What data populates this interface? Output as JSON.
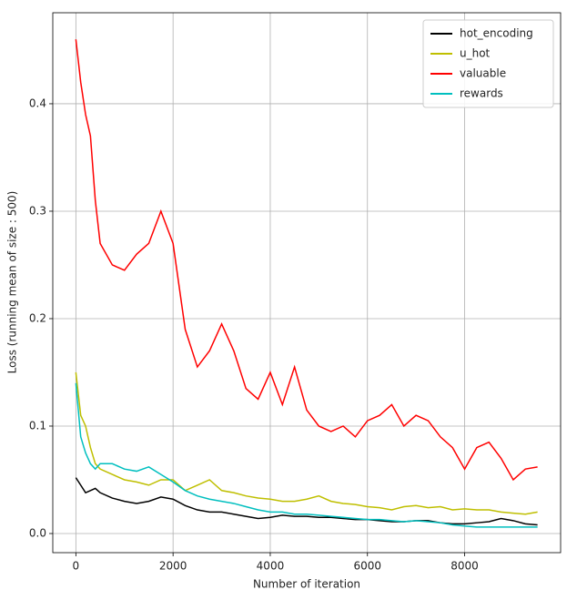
{
  "chart_data": {
    "type": "line",
    "xlabel": "Number of iteration",
    "ylabel": "Loss (running mean of size : 500)",
    "x": [
      0,
      100,
      200,
      300,
      400,
      500,
      750,
      1000,
      1250,
      1500,
      1750,
      2000,
      2250,
      2500,
      2750,
      3000,
      3250,
      3500,
      3750,
      4000,
      4250,
      4500,
      4750,
      5000,
      5250,
      5500,
      5750,
      6000,
      6250,
      6500,
      6750,
      7000,
      7250,
      7500,
      7750,
      8000,
      8250,
      8500,
      8750,
      9000,
      9250,
      9500
    ],
    "series": [
      {
        "name": "hot_encoding",
        "color": "#000000",
        "values": [
          0.052,
          0.045,
          0.038,
          0.04,
          0.042,
          0.038,
          0.033,
          0.03,
          0.028,
          0.03,
          0.034,
          0.032,
          0.026,
          0.022,
          0.02,
          0.02,
          0.018,
          0.016,
          0.014,
          0.015,
          0.017,
          0.016,
          0.016,
          0.015,
          0.015,
          0.014,
          0.013,
          0.013,
          0.012,
          0.011,
          0.011,
          0.012,
          0.012,
          0.01,
          0.009,
          0.009,
          0.01,
          0.011,
          0.014,
          0.012,
          0.009,
          0.008
        ]
      },
      {
        "name": "u_hot",
        "color": "#bfbf00",
        "values": [
          0.15,
          0.11,
          0.1,
          0.08,
          0.065,
          0.06,
          0.055,
          0.05,
          0.048,
          0.045,
          0.05,
          0.05,
          0.04,
          0.045,
          0.05,
          0.04,
          0.038,
          0.035,
          0.033,
          0.032,
          0.03,
          0.03,
          0.032,
          0.035,
          0.03,
          0.028,
          0.027,
          0.025,
          0.024,
          0.022,
          0.025,
          0.026,
          0.024,
          0.025,
          0.022,
          0.023,
          0.022,
          0.022,
          0.02,
          0.019,
          0.018,
          0.02
        ]
      },
      {
        "name": "valuable",
        "color": "#ff0000",
        "values": [
          0.46,
          0.42,
          0.39,
          0.37,
          0.31,
          0.27,
          0.25,
          0.245,
          0.26,
          0.27,
          0.3,
          0.27,
          0.19,
          0.155,
          0.17,
          0.195,
          0.17,
          0.135,
          0.125,
          0.15,
          0.12,
          0.155,
          0.115,
          0.1,
          0.095,
          0.1,
          0.09,
          0.105,
          0.11,
          0.12,
          0.1,
          0.11,
          0.105,
          0.09,
          0.08,
          0.06,
          0.08,
          0.085,
          0.07,
          0.05,
          0.06,
          0.062
        ]
      },
      {
        "name": "rewards",
        "color": "#00bfbf",
        "values": [
          0.14,
          0.09,
          0.075,
          0.065,
          0.06,
          0.065,
          0.065,
          0.06,
          0.058,
          0.062,
          0.055,
          0.048,
          0.04,
          0.035,
          0.032,
          0.03,
          0.028,
          0.025,
          0.022,
          0.02,
          0.02,
          0.018,
          0.018,
          0.017,
          0.016,
          0.015,
          0.014,
          0.013,
          0.013,
          0.012,
          0.011,
          0.012,
          0.011,
          0.01,
          0.008,
          0.007,
          0.006,
          0.006,
          0.006,
          0.006,
          0.006,
          0.006
        ]
      }
    ],
    "xlim": [
      -475,
      9975
    ],
    "ylim": [
      -0.0178,
      0.4847
    ],
    "xticks": [
      0,
      2000,
      4000,
      6000,
      8000
    ],
    "yticks": [
      {
        "value": 0,
        "label": "0.0"
      },
      0.1,
      0.2,
      0.3,
      0.4
    ],
    "grid": true,
    "legend": "upper-right"
  }
}
